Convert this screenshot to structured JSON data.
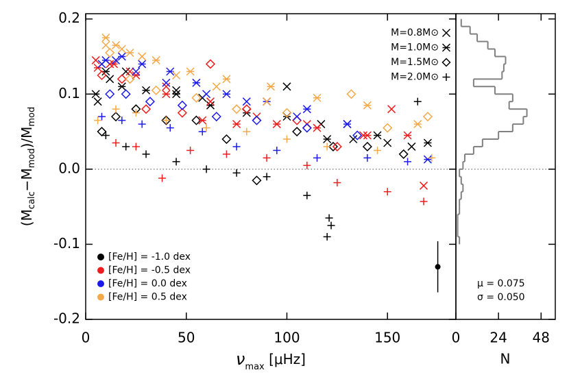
{
  "chart_data": [
    {
      "type": "scatter",
      "xlabel": {
        "symbol": "ν",
        "sub": "max",
        "unit": " [μHz]"
      },
      "ylabel": {
        "parts": [
          "(M",
          "calc",
          "−M",
          "mod",
          ")/M",
          "mod"
        ]
      },
      "xlim": [
        0,
        184
      ],
      "ylim": [
        -0.2,
        0.207
      ],
      "xticks": [
        0,
        50,
        100,
        150
      ],
      "yticks": [
        -0.2,
        -0.1,
        {
          "value": 0,
          "label": "0.0"
        },
        0.1,
        0.2
      ],
      "hline": 0,
      "markers": [
        {
          "label": "M=0.8M⊙",
          "marker": "x"
        },
        {
          "label": "M=1.0M⊙",
          "marker": "asterisk"
        },
        {
          "label": "M=1.5M⊙",
          "marker": "diamond"
        },
        {
          "label": "M=2.0M⊙",
          "marker": "plus"
        }
      ],
      "series": [
        {
          "name": "[Fe/H] = -1.0 dex",
          "color": "#000000",
          "groups": [
            {
              "marker": "x",
              "x": [
                6,
                12,
                20,
                45,
                58,
                100,
                117,
                133,
                150,
                162
              ],
              "y": [
                0.09,
                0.12,
                0.13,
                0.105,
                0.095,
                0.11,
                0.06,
                0.04,
                0.035,
                0.03
              ]
            },
            {
              "marker": "asterisk",
              "x": [
                5,
                10,
                18,
                30,
                45,
                62,
                80,
                100,
                120,
                145,
                170
              ],
              "y": [
                0.1,
                0.13,
                0.11,
                0.105,
                0.1,
                0.085,
                0.075,
                0.07,
                0.04,
                0.045,
                0.035
              ]
            },
            {
              "marker": "diamond",
              "x": [
                8,
                15,
                25,
                40,
                55,
                70,
                85,
                105,
                123,
                140,
                158
              ],
              "y": [
                0.05,
                0.07,
                0.08,
                0.065,
                0.065,
                0.04,
                -0.015,
                0.05,
                0.03,
                0.03,
                0.02
              ]
            },
            {
              "marker": "plus",
              "x": [
                10,
                20,
                30,
                45,
                60,
                75,
                90,
                110,
                120,
                122,
                121,
                165
              ],
              "y": [
                0.045,
                0.03,
                0.02,
                0.01,
                0.0,
                -0.005,
                -0.01,
                -0.035,
                -0.09,
                -0.075,
                -0.065,
                0.09
              ]
            }
          ]
        },
        {
          "name": "[Fe/H] = -0.5 dex",
          "color": "#ee1c1c",
          "groups": [
            {
              "marker": "x",
              "x": [
                5,
                12,
                22,
                40,
                62,
                85,
                110,
                138,
                152,
                168
              ],
              "y": [
                0.145,
                0.14,
                0.13,
                0.11,
                0.09,
                0.07,
                0.06,
                0.045,
                0.08,
                -0.022
              ]
            },
            {
              "marker": "asterisk",
              "x": [
                6,
                14,
                25,
                40,
                58,
                75,
                95,
                115,
                140,
                160
              ],
              "y": [
                0.135,
                0.14,
                0.125,
                0.1,
                0.065,
                0.06,
                0.06,
                0.055,
                0.045,
                0.045
              ]
            },
            {
              "marker": "diamond",
              "x": [
                8,
                18,
                30,
                48,
                62,
                80,
                105,
                125
              ],
              "y": [
                0.125,
                0.12,
                0.08,
                0.075,
                0.14,
                0.08,
                0.065,
                0.03
              ]
            },
            {
              "marker": "plus",
              "x": [
                15,
                25,
                38,
                52,
                70,
                90,
                110,
                125,
                150,
                168
              ],
              "y": [
                0.035,
                0.03,
                -0.012,
                0.025,
                0.02,
                0.015,
                0.005,
                -0.018,
                -0.03,
                -0.043
              ]
            }
          ]
        },
        {
          "name": "[Fe/H] = 0.0 dex",
          "color": "#1a1aee",
          "groups": [
            {
              "marker": "x",
              "x": [
                8,
                15,
                25,
                40,
                60,
                80,
                105,
                130
              ],
              "y": [
                0.14,
                0.145,
                0.13,
                0.115,
                0.1,
                0.09,
                0.07,
                0.06
              ]
            },
            {
              "marker": "asterisk",
              "x": [
                10,
                18,
                28,
                42,
                55,
                70,
                90,
                110,
                130,
                170
              ],
              "y": [
                0.145,
                0.15,
                0.14,
                0.13,
                0.115,
                0.1,
                0.09,
                0.08,
                0.06,
                0.013
              ]
            },
            {
              "marker": "diamond",
              "x": [
                12,
                20,
                32,
                48,
                65,
                85,
                110,
                135
              ],
              "y": [
                0.1,
                0.1,
                0.09,
                0.085,
                0.07,
                0.065,
                0.055,
                0.045
              ]
            },
            {
              "marker": "plus",
              "x": [
                8,
                18,
                28,
                42,
                58,
                75,
                95,
                115,
                140,
                160
              ],
              "y": [
                0.07,
                0.065,
                0.06,
                0.055,
                0.05,
                0.03,
                0.025,
                0.015,
                0.015,
                0.01
              ]
            }
          ]
        },
        {
          "name": "[Fe/H] = 0.5 dex",
          "color": "#f4a848",
          "groups": [
            {
              "marker": "x",
              "x": [
                10,
                18,
                28,
                45,
                65,
                90
              ],
              "y": [
                0.165,
                0.16,
                0.15,
                0.125,
                0.11,
                0.09
              ]
            },
            {
              "marker": "asterisk",
              "x": [
                10,
                15,
                22,
                35,
                52,
                70,
                92,
                115,
                140,
                165
              ],
              "y": [
                0.175,
                0.165,
                0.155,
                0.145,
                0.13,
                0.12,
                0.11,
                0.095,
                0.085,
                0.06
              ]
            },
            {
              "marker": "diamond",
              "x": [
                12,
                22,
                35,
                55,
                75,
                100,
                132,
                150,
                170
              ],
              "y": [
                0.155,
                0.12,
                0.105,
                0.095,
                0.08,
                0.075,
                0.1,
                0.055,
                0.07
              ]
            },
            {
              "marker": "plus",
              "x": [
                6,
                15,
                25,
                40,
                60,
                80,
                100,
                120,
                145,
                172
              ],
              "y": [
                0.065,
                0.08,
                0.075,
                0.065,
                0.055,
                0.05,
                0.04,
                0.03,
                0.025,
                0.015
              ]
            }
          ]
        }
      ],
      "error_bar": {
        "x": 175,
        "y": -0.13,
        "err": 0.034
      }
    },
    {
      "type": "histogram",
      "orientation": "horizontal",
      "color": "#808080",
      "xlabel": "N",
      "xlim": [
        0,
        56
      ],
      "xticks": [
        0,
        24,
        48
      ],
      "bins": [
        -0.1,
        -0.09,
        -0.08,
        -0.07,
        -0.06,
        -0.05,
        -0.04,
        -0.03,
        -0.02,
        -0.01,
        0.0,
        0.01,
        0.02,
        0.03,
        0.04,
        0.05,
        0.06,
        0.07,
        0.08,
        0.09,
        0.1,
        0.11,
        0.12,
        0.13,
        0.14,
        0.15,
        0.16,
        0.17,
        0.18,
        0.19,
        0.2
      ],
      "counts": [
        2,
        1,
        1,
        1,
        2,
        2,
        3,
        4,
        3,
        2,
        4,
        5,
        10,
        15,
        24,
        32,
        38,
        40,
        30,
        32,
        22,
        10,
        26,
        27,
        28,
        22,
        18,
        12,
        8,
        3
      ],
      "annotations": [
        "μ = 0.075",
        "σ = 0.050"
      ]
    }
  ]
}
